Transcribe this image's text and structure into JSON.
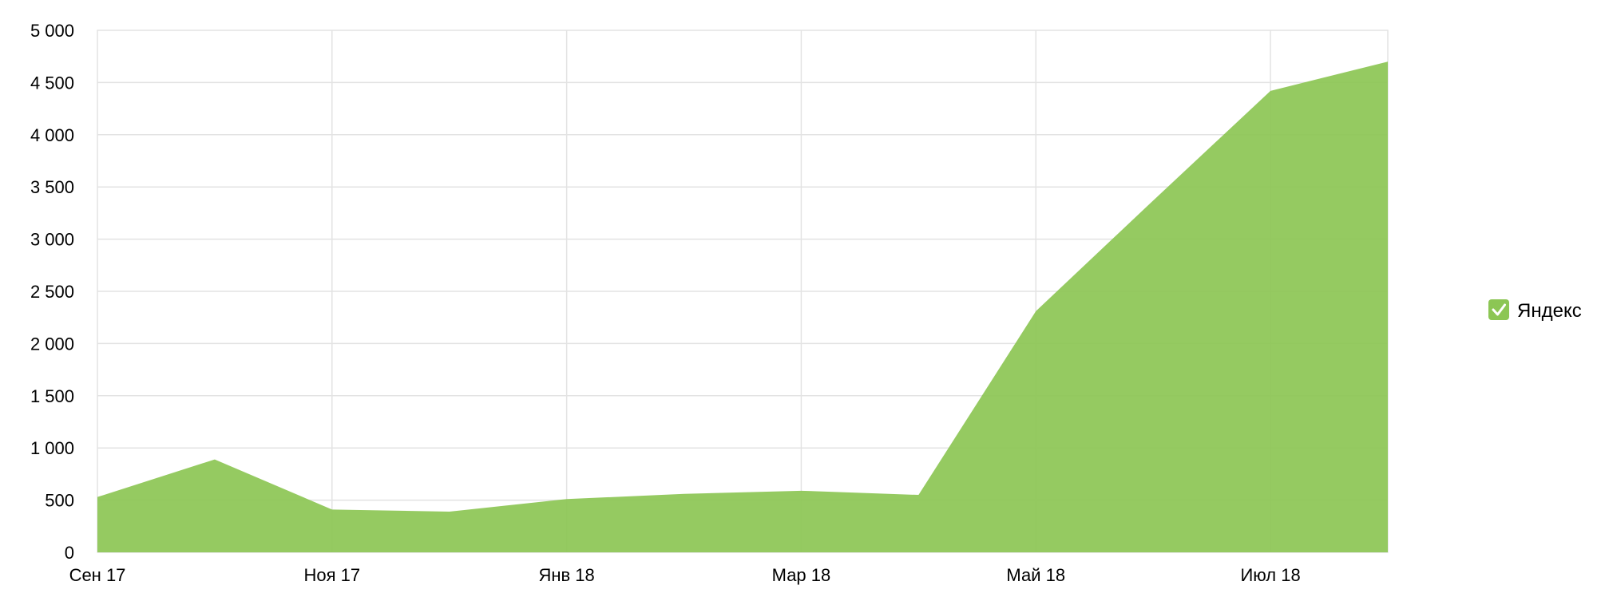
{
  "chart_data": {
    "type": "area",
    "title": "",
    "xlabel": "",
    "ylabel": "",
    "x": [
      "2017-09",
      "2017-10",
      "2017-11",
      "2017-12",
      "2018-01",
      "2018-02",
      "2018-03",
      "2018-04",
      "2018-05",
      "2018-06",
      "2018-07",
      "2018-08"
    ],
    "x_tick_labels": [
      {
        "x": "2017-09",
        "label": "Сен 17"
      },
      {
        "x": "2017-11",
        "label": "Ноя 17"
      },
      {
        "x": "2018-01",
        "label": "Янв 18"
      },
      {
        "x": "2018-03",
        "label": "Мар 18"
      },
      {
        "x": "2018-05",
        "label": "Май 18"
      },
      {
        "x": "2018-07",
        "label": "Июл 18"
      }
    ],
    "y_ticks": [
      0,
      500,
      1000,
      1500,
      2000,
      2500,
      3000,
      3500,
      4000,
      4500,
      5000
    ],
    "y_tick_labels": [
      "0",
      "500",
      "1 000",
      "1 500",
      "2 000",
      "2 500",
      "3 000",
      "3 500",
      "4 000",
      "4 500",
      "5 000"
    ],
    "ylim": [
      0,
      5000
    ],
    "grid": true,
    "legend_position": "right",
    "series": [
      {
        "name": "Яндекс",
        "color": "#8cc654",
        "values": [
          530,
          890,
          410,
          390,
          510,
          560,
          590,
          550,
          2310,
          3370,
          4420,
          4700
        ]
      }
    ]
  },
  "legend": {
    "checkbox_icon": "checkmark-icon",
    "checked": true
  }
}
